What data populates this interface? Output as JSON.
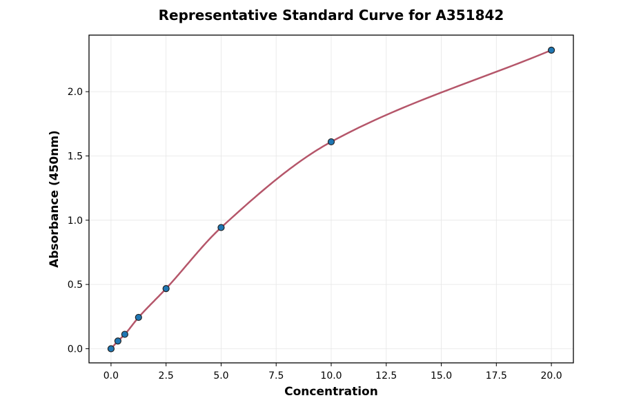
{
  "chart_data": {
    "type": "scatter",
    "title": "Representative Standard Curve for A351842",
    "xlabel": "Concentration",
    "ylabel": "Absorbance (450nm)",
    "xlim": [
      -1.0,
      21.0
    ],
    "ylim": [
      -0.11,
      2.44
    ],
    "xticks": [
      0.0,
      2.5,
      5.0,
      7.5,
      10.0,
      12.5,
      15.0,
      17.5,
      20.0
    ],
    "xtick_labels": [
      "0.0",
      "2.5",
      "5.0",
      "7.5",
      "10.0",
      "12.5",
      "15.0",
      "17.5",
      "20.0"
    ],
    "yticks": [
      0.0,
      0.5,
      1.0,
      1.5,
      2.0
    ],
    "ytick_labels": [
      "0.0",
      "0.5",
      "1.0",
      "1.5",
      "2.0"
    ],
    "grid": true,
    "points": [
      {
        "x": 0.0,
        "y": 0.0
      },
      {
        "x": 0.3125,
        "y": 0.06
      },
      {
        "x": 0.625,
        "y": 0.112
      },
      {
        "x": 1.25,
        "y": 0.244
      },
      {
        "x": 2.5,
        "y": 0.468
      },
      {
        "x": 5.0,
        "y": 0.943
      },
      {
        "x": 10.0,
        "y": 1.61
      },
      {
        "x": 20.0,
        "y": 2.323
      }
    ],
    "fit_curve": {
      "type": "smooth curve through points"
    },
    "colors": {
      "points": "#1f77b4",
      "point_edge": "#222222",
      "curve": "#b5566a"
    }
  }
}
